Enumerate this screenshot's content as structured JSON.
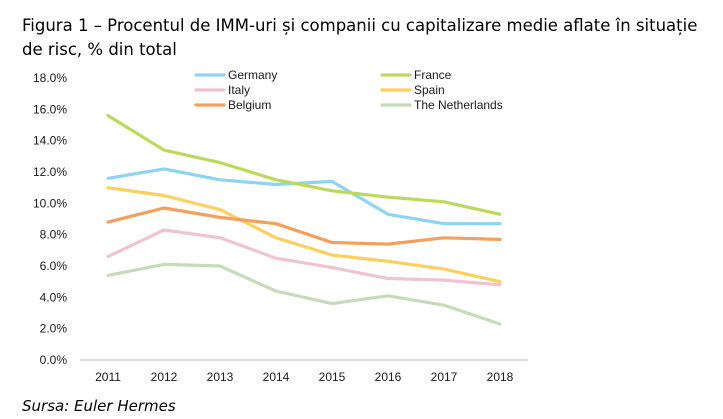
{
  "title": "Figura 1 – Procentul de IMM-uri și companii cu capitalizare medie aflate în situație de risc, % din total",
  "source": "Sursa: Euler Hermes",
  "chart_data": {
    "type": "line",
    "x": [
      "2011",
      "2012",
      "2013",
      "2014",
      "2015",
      "2016",
      "2017",
      "2018"
    ],
    "ylim": [
      0,
      18
    ],
    "yticks": [
      "0.0%",
      "2.0%",
      "4.0%",
      "6.0%",
      "8.0%",
      "10.0%",
      "12.0%",
      "14.0%",
      "16.0%",
      "18.0%"
    ],
    "grid": false,
    "legend": "top",
    "series": [
      {
        "name": "Germany",
        "color": "#8fd3f2",
        "values": [
          11.6,
          12.2,
          11.5,
          11.2,
          11.4,
          9.3,
          8.7,
          8.7
        ]
      },
      {
        "name": "France",
        "color": "#bcd95c",
        "values": [
          15.6,
          13.4,
          12.6,
          11.5,
          10.8,
          10.4,
          10.1,
          9.3
        ]
      },
      {
        "name": "Italy",
        "color": "#f0c3d3",
        "values": [
          6.6,
          8.3,
          7.8,
          6.5,
          5.9,
          5.2,
          5.1,
          4.8
        ]
      },
      {
        "name": "Spain",
        "color": "#fccf61",
        "values": [
          11.0,
          10.5,
          9.6,
          7.8,
          6.7,
          6.3,
          5.8,
          5.0
        ]
      },
      {
        "name": "Belgium",
        "color": "#f4a05c",
        "values": [
          8.8,
          9.7,
          9.1,
          8.7,
          7.5,
          7.4,
          7.8,
          7.7
        ]
      },
      {
        "name": "The Netherlands",
        "color": "#c5dbb9",
        "values": [
          5.4,
          6.1,
          6.0,
          4.4,
          3.6,
          4.1,
          3.5,
          2.3
        ]
      }
    ]
  }
}
